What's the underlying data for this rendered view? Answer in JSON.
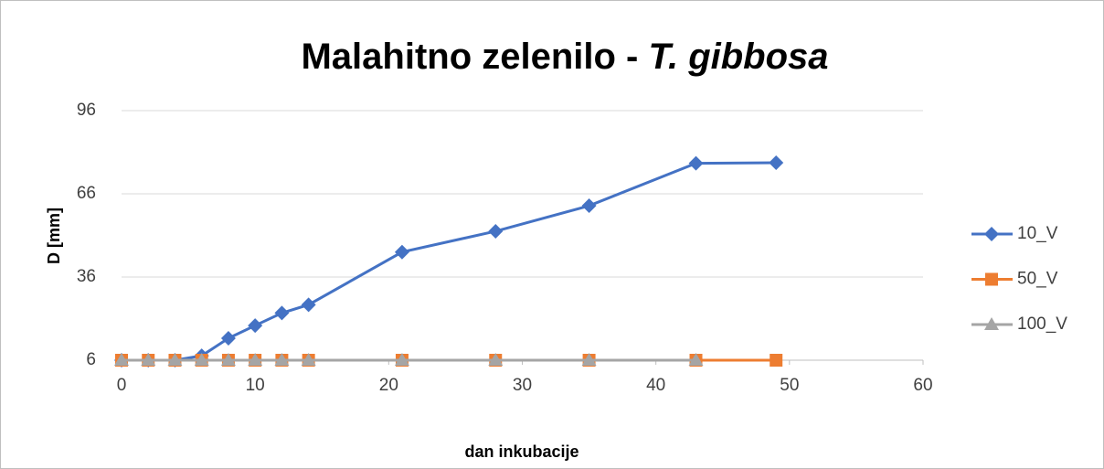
{
  "chart_data": {
    "type": "line",
    "title": [
      "Malahitno zelenilo - ",
      "T. gibbosa"
    ],
    "xlabel": "dan inkubacije",
    "ylabel": "D [mm]",
    "xlim": [
      0,
      60
    ],
    "xticks": [
      0,
      10,
      20,
      30,
      40,
      50,
      60
    ],
    "ylim": [
      6,
      96
    ],
    "yticks": [
      6,
      36,
      66,
      96
    ],
    "grid": true,
    "legend": "right",
    "series": [
      {
        "name": "10_V",
        "color": "#4472c4",
        "marker": "diamond",
        "x": [
          0,
          2,
          4,
          6,
          8,
          10,
          12,
          14,
          21,
          28,
          35,
          43,
          49
        ],
        "values": [
          6,
          6,
          6,
          7.6,
          13.9,
          18.5,
          23,
          26,
          45,
          52.5,
          61.7,
          77,
          77.2
        ]
      },
      {
        "name": "50_V",
        "color": "#ed7d31",
        "marker": "square",
        "x": [
          0,
          2,
          4,
          6,
          8,
          10,
          12,
          14,
          21,
          28,
          35,
          43,
          49
        ],
        "values": [
          6,
          6,
          6,
          6,
          6,
          6,
          6,
          6,
          6,
          6,
          6,
          6,
          6
        ]
      },
      {
        "name": "100_V",
        "color": "#a5a5a5",
        "marker": "triangle",
        "x": [
          0,
          2,
          4,
          6,
          8,
          10,
          12,
          14,
          21,
          28,
          35,
          43
        ],
        "values": [
          6,
          6,
          6,
          6,
          6,
          6,
          6,
          6,
          6,
          6,
          6,
          6
        ]
      }
    ]
  }
}
